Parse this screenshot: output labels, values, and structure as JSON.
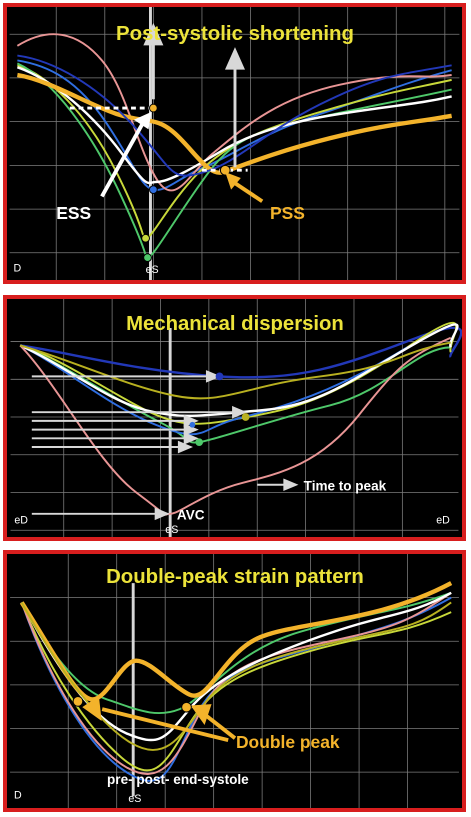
{
  "panels": [
    {
      "title": "Post-systolic shortening",
      "labels": {
        "ess": "ESS",
        "pss": "PSS",
        "corner": "D",
        "marker": "eS"
      }
    },
    {
      "title": "Mechanical dispersion",
      "labels": {
        "time_to_peak": "Time to peak",
        "avc": "AVC",
        "corner_left": "eD",
        "corner_right": "eD",
        "marker": "eS"
      }
    },
    {
      "title": "Double-peak strain pattern",
      "labels": {
        "double_peak": "Double peak",
        "phases": "pre-   post- end-systole",
        "corner": "D",
        "marker": "eS"
      }
    }
  ],
  "colors": {
    "panel_border": "#d81e1e",
    "background": "#000000",
    "title": "#ece33a",
    "accent": "#f3b32b",
    "grid": "#8a8a8a"
  }
}
